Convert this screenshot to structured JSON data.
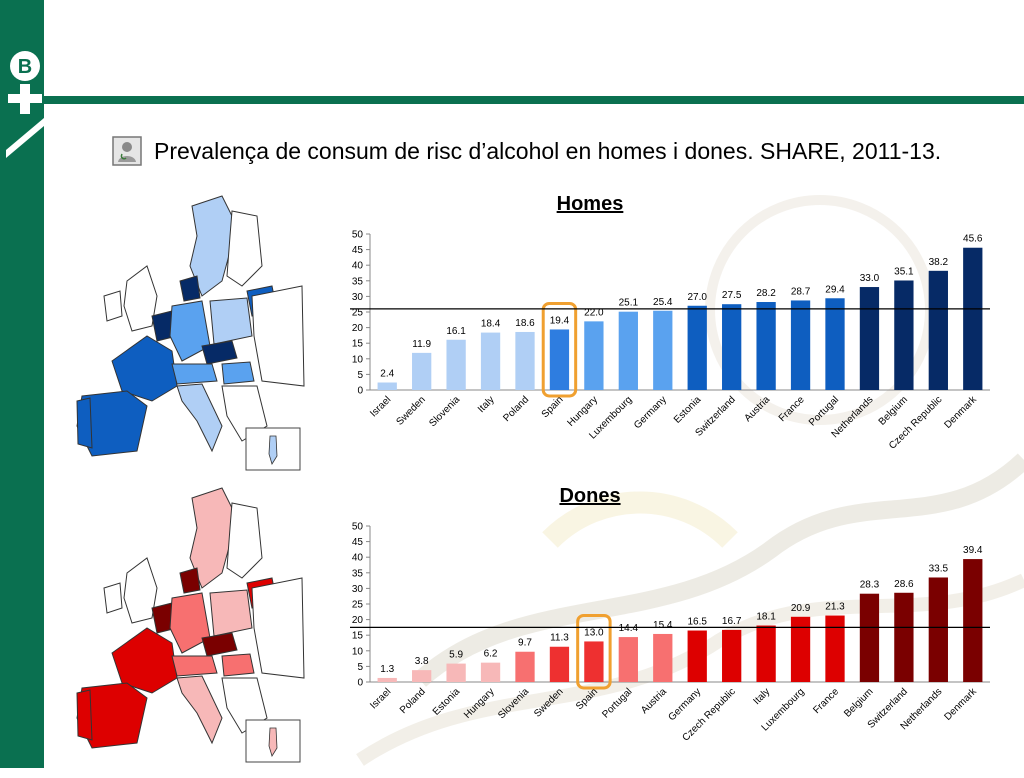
{
  "slide": {
    "title": "Prevalença de consum de risc d’alcohol en homes i dones. SHARE, 2011-13.",
    "accent_color": "#0a7050"
  },
  "chart_data": [
    {
      "type": "bar",
      "title": "Homes",
      "categories": [
        "Israel",
        "Sweden",
        "Slovenia",
        "Italy",
        "Poland",
        "Spain",
        "Hungary",
        "Luxembourg",
        "Germany",
        "Estonia",
        "Switzerland",
        "Austria",
        "France",
        "Portugal",
        "Netherlands",
        "Belgium",
        "Czech Republic",
        "Denmark"
      ],
      "values": [
        2.4,
        11.9,
        16.1,
        18.4,
        18.6,
        19.4,
        22.0,
        25.1,
        25.4,
        27.0,
        27.5,
        28.2,
        28.7,
        29.4,
        33.0,
        35.1,
        38.2,
        45.6
      ],
      "value_labels": [
        "2.4",
        "11.9",
        "16.1",
        "18.4",
        "18.6",
        "19.4",
        "22.0",
        "25.1",
        "25.4",
        "27.0",
        "27.5",
        "28.2",
        "28.7",
        "29.4",
        "33.0",
        "35.1",
        "38.2",
        "45.6"
      ],
      "colors": [
        "#b0cff5",
        "#b0cff5",
        "#b0cff5",
        "#b0cff5",
        "#b0cff5",
        "#2e7de0",
        "#5aa2ef",
        "#5aa2ef",
        "#5aa2ef",
        "#0e5ec0",
        "#0e5ec0",
        "#0e5ec0",
        "#0e5ec0",
        "#0e5ec0",
        "#062a66",
        "#062a66",
        "#062a66",
        "#062a66"
      ],
      "ylim": [
        0,
        50
      ],
      "yticks": [
        "0",
        "5",
        "10",
        "15",
        "20",
        "25",
        "30",
        "35",
        "40",
        "45",
        "50"
      ],
      "reference_line": 26,
      "highlight": "Spain",
      "highlight_color": "#f0a030",
      "grid": false,
      "xlabel": "",
      "ylabel": ""
    },
    {
      "type": "bar",
      "title": "Dones",
      "categories": [
        "Israel",
        "Poland",
        "Estonia",
        "Hungary",
        "Slovenia",
        "Sweden",
        "Spain",
        "Portugal",
        "Austria",
        "Germany",
        "Czech Republic",
        "Italy",
        "Luxembourg",
        "France",
        "Belgium",
        "Switzerland",
        "Netherlands",
        "Denmark"
      ],
      "values": [
        1.3,
        3.8,
        5.9,
        6.2,
        9.7,
        11.3,
        13.0,
        14.4,
        15.4,
        16.5,
        16.7,
        18.1,
        20.9,
        21.3,
        28.3,
        28.6,
        33.5,
        39.4
      ],
      "value_labels": [
        "1.3",
        "3.8",
        "5.9",
        "6.2",
        "9.7",
        "11.3",
        "13.0",
        "14.4",
        "15.4",
        "16.5",
        "16.7",
        "18.1",
        "20.9",
        "21.3",
        "28.3",
        "28.6",
        "33.5",
        "39.4"
      ],
      "colors": [
        "#f7b8b8",
        "#f7b8b8",
        "#f7b8b8",
        "#f7b8b8",
        "#f77070",
        "#ee3030",
        "#ee3030",
        "#f77070",
        "#f77070",
        "#dd0000",
        "#dd0000",
        "#dd0000",
        "#dd0000",
        "#dd0000",
        "#7a0000",
        "#7a0000",
        "#7a0000",
        "#7a0000"
      ],
      "ylim": [
        0,
        50
      ],
      "yticks": [
        "0",
        "5",
        "10",
        "15",
        "20",
        "25",
        "30",
        "35",
        "40",
        "45",
        "50"
      ],
      "reference_line": 17.5,
      "highlight": "Spain",
      "highlight_color": "#f0a030",
      "grid": false,
      "xlabel": "",
      "ylabel": ""
    }
  ],
  "maps": {
    "homes_palette": [
      "#b0cff5",
      "#5aa2ef",
      "#0e5ec0",
      "#062a66"
    ],
    "dones_palette": [
      "#f7b8b8",
      "#f77070",
      "#dd0000",
      "#7a0000"
    ]
  }
}
